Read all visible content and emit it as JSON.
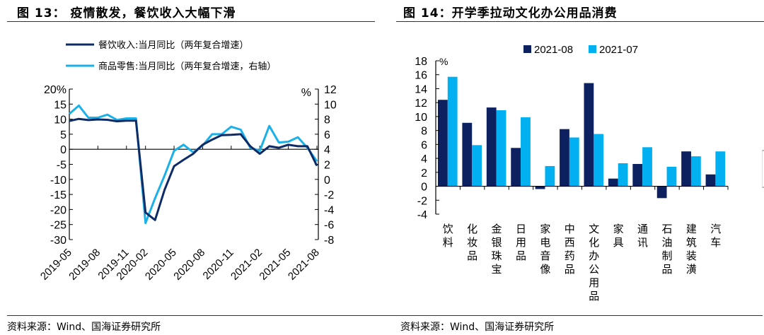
{
  "left": {
    "title": "图 13：  疫情散发，餐饮收入大幅下滑",
    "source": "资料来源：Wind、国海证券研究所"
  },
  "right": {
    "title": "图  14：开学季拉动文化办公用品消费",
    "source": "资料来源：Wind、国海证券研究所"
  },
  "chart_data": [
    {
      "type": "line",
      "title": "疫情散发，餐饮收入大幅下滑",
      "x": [
        "2019-05",
        "2019-06",
        "2019-07",
        "2019-08",
        "2019-09",
        "2019-10",
        "2019-11",
        "2019-12",
        "2020-02",
        "2020-03",
        "2020-04",
        "2020-05",
        "2020-06",
        "2020-07",
        "2020-08",
        "2020-09",
        "2020-10",
        "2020-11",
        "2020-12",
        "2021-01",
        "2021-02",
        "2021-03",
        "2021-04",
        "2021-05",
        "2021-06",
        "2021-07",
        "2021-08"
      ],
      "xtick_labels": [
        "2019-05",
        "2019-08",
        "2019-11",
        "2020-02",
        "2020-05",
        "2020-08",
        "2020-11",
        "2021-02",
        "2021-05",
        "2021-08"
      ],
      "series": [
        {
          "name": "餐饮收入:当月同比（两年复合增速）",
          "axis": "left",
          "color": "#0d2b66",
          "values": [
            9.4,
            10.1,
            9.7,
            9.9,
            9.8,
            9.3,
            9.5,
            9.5,
            -21.0,
            -23.5,
            -13.5,
            -5.6,
            -3.5,
            -1.5,
            1.5,
            3.2,
            4.7,
            4.8,
            5.0,
            1.0,
            -1.5,
            1.0,
            0.5,
            1.5,
            1.0,
            1.0,
            -5.5
          ]
        },
        {
          "name": "商品零售:当月同比（两年复合增速，右轴）",
          "axis": "right",
          "color": "#1ab0e8",
          "values": [
            8.7,
            9.8,
            8.2,
            8.2,
            8.6,
            7.9,
            8.1,
            8.1,
            -5.8,
            -2.5,
            0.5,
            3.8,
            4.6,
            3.6,
            4.5,
            6.0,
            6.0,
            7.0,
            6.6,
            4.2,
            3.8,
            7.1,
            4.9,
            5.0,
            5.6,
            4.2,
            2.4
          ]
        }
      ],
      "legend": [
        "餐饮收入:当月同比（两年复合增速）",
        "商品零售:当月同比（两年复合增速，右轴）"
      ],
      "legend_position": "top",
      "y_left": {
        "label": "%",
        "ylim": [
          -30,
          20
        ],
        "ticks": [
          20,
          15,
          10,
          5,
          0,
          -5,
          -10,
          -15,
          -20,
          -25,
          -30
        ],
        "tick_labels": [
          "20%",
          "15",
          "10",
          "5",
          "0",
          "-5",
          "-10",
          "-15",
          "-20",
          "-25",
          "-30"
        ]
      },
      "y_right": {
        "label": "%",
        "ylim": [
          -8,
          12
        ],
        "ticks": [
          12,
          10,
          8,
          6,
          4,
          2,
          0,
          -2,
          -4,
          -6,
          -8
        ]
      },
      "grid": false
    },
    {
      "type": "bar",
      "title": "开学季拉动文化办公用品消费",
      "categories": [
        "饮料",
        "化妆品",
        "金银珠宝",
        "日用品",
        "家电音像",
        "中西药品",
        "文化办公用品",
        "家具",
        "通讯",
        "石油制品",
        "建筑装潢",
        "汽车"
      ],
      "series": [
        {
          "name": "2021-08",
          "color": "#0d2160",
          "values": [
            12.4,
            9.1,
            11.3,
            5.5,
            -0.4,
            8.2,
            14.8,
            1.1,
            3.2,
            -1.7,
            5.0,
            1.7
          ]
        },
        {
          "name": "2021-07",
          "color": "#00b0f0",
          "values": [
            15.7,
            5.9,
            10.9,
            9.9,
            2.9,
            7.0,
            7.5,
            3.3,
            5.6,
            2.8,
            4.3,
            5.0
          ]
        }
      ],
      "legend_position": "top",
      "ylabel": "%",
      "ylim": [
        -4,
        18
      ],
      "yticks": [
        18,
        16,
        14,
        12,
        10,
        8,
        6,
        4,
        2,
        0,
        -2,
        -4
      ],
      "grid": false
    }
  ]
}
